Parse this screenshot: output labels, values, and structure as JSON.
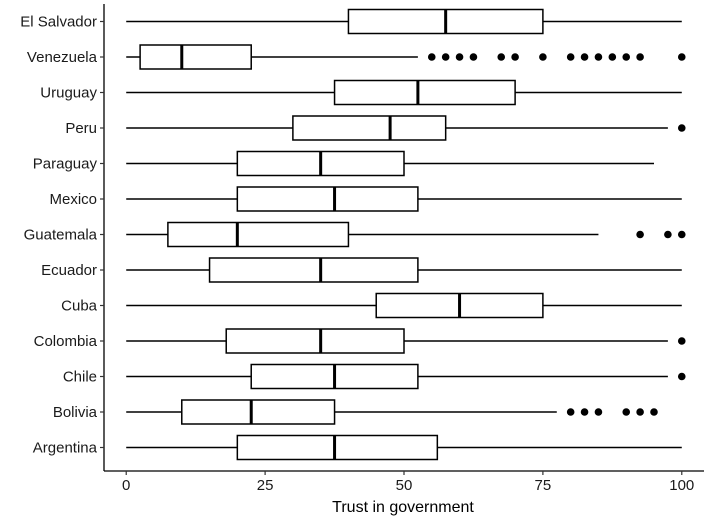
{
  "chart_data": {
    "type": "boxplot",
    "orientation": "horizontal",
    "xlabel": "Trust in government",
    "ylabel": "",
    "xlim": [
      -4,
      104
    ],
    "x_ticks": [
      0,
      25,
      50,
      75,
      100
    ],
    "x_tick_labels": [
      "0",
      "25",
      "50",
      "75",
      "100"
    ],
    "grid": false,
    "categories": [
      "El Salvador",
      "Venezuela",
      "Uruguay",
      "Peru",
      "Paraguay",
      "Mexico",
      "Guatemala",
      "Ecuador",
      "Cuba",
      "Colombia",
      "Chile",
      "Bolivia",
      "Argentina"
    ],
    "boxes": [
      {
        "category": "El Salvador",
        "whisker_low": 0,
        "q1": 40,
        "median": 57.5,
        "q3": 75,
        "whisker_high": 100,
        "outliers": []
      },
      {
        "category": "Venezuela",
        "whisker_low": 0,
        "q1": 2.5,
        "median": 10,
        "q3": 22.5,
        "whisker_high": 52.5,
        "outliers": [
          55,
          57.5,
          60,
          62.5,
          67.5,
          70,
          75,
          80,
          82.5,
          85,
          87.5,
          90,
          92.5,
          100
        ]
      },
      {
        "category": "Uruguay",
        "whisker_low": 0,
        "q1": 37.5,
        "median": 52.5,
        "q3": 70,
        "whisker_high": 100,
        "outliers": []
      },
      {
        "category": "Peru",
        "whisker_low": 0,
        "q1": 30,
        "median": 47.5,
        "q3": 57.5,
        "whisker_high": 97.5,
        "outliers": [
          100
        ]
      },
      {
        "category": "Paraguay",
        "whisker_low": 0,
        "q1": 20,
        "median": 35,
        "q3": 50,
        "whisker_high": 95,
        "outliers": []
      },
      {
        "category": "Mexico",
        "whisker_low": 0,
        "q1": 20,
        "median": 37.5,
        "q3": 52.5,
        "whisker_high": 100,
        "outliers": []
      },
      {
        "category": "Guatemala",
        "whisker_low": 0,
        "q1": 7.5,
        "median": 20,
        "q3": 40,
        "whisker_high": 85,
        "outliers": [
          92.5,
          97.5,
          100
        ]
      },
      {
        "category": "Ecuador",
        "whisker_low": 0,
        "q1": 15,
        "median": 35,
        "q3": 52.5,
        "whisker_high": 100,
        "outliers": []
      },
      {
        "category": "Cuba",
        "whisker_low": 0,
        "q1": 45,
        "median": 60,
        "q3": 75,
        "whisker_high": 100,
        "outliers": []
      },
      {
        "category": "Colombia",
        "whisker_low": 0,
        "q1": 18,
        "median": 35,
        "q3": 50,
        "whisker_high": 97.5,
        "outliers": [
          100
        ]
      },
      {
        "category": "Chile",
        "whisker_low": 0,
        "q1": 22.5,
        "median": 37.5,
        "q3": 52.5,
        "whisker_high": 97.5,
        "outliers": [
          100
        ]
      },
      {
        "category": "Bolivia",
        "whisker_low": 0,
        "q1": 10,
        "median": 22.5,
        "q3": 37.5,
        "whisker_high": 77.5,
        "outliers": [
          80,
          82.5,
          85,
          90,
          92.5,
          95
        ]
      },
      {
        "category": "Argentina",
        "whisker_low": 0,
        "q1": 20,
        "median": 37.5,
        "q3": 56,
        "whisker_high": 100,
        "outliers": []
      }
    ],
    "colors": {
      "box_fill": "#ffffff",
      "stroke": "#000000",
      "outlier": "#000000"
    }
  }
}
